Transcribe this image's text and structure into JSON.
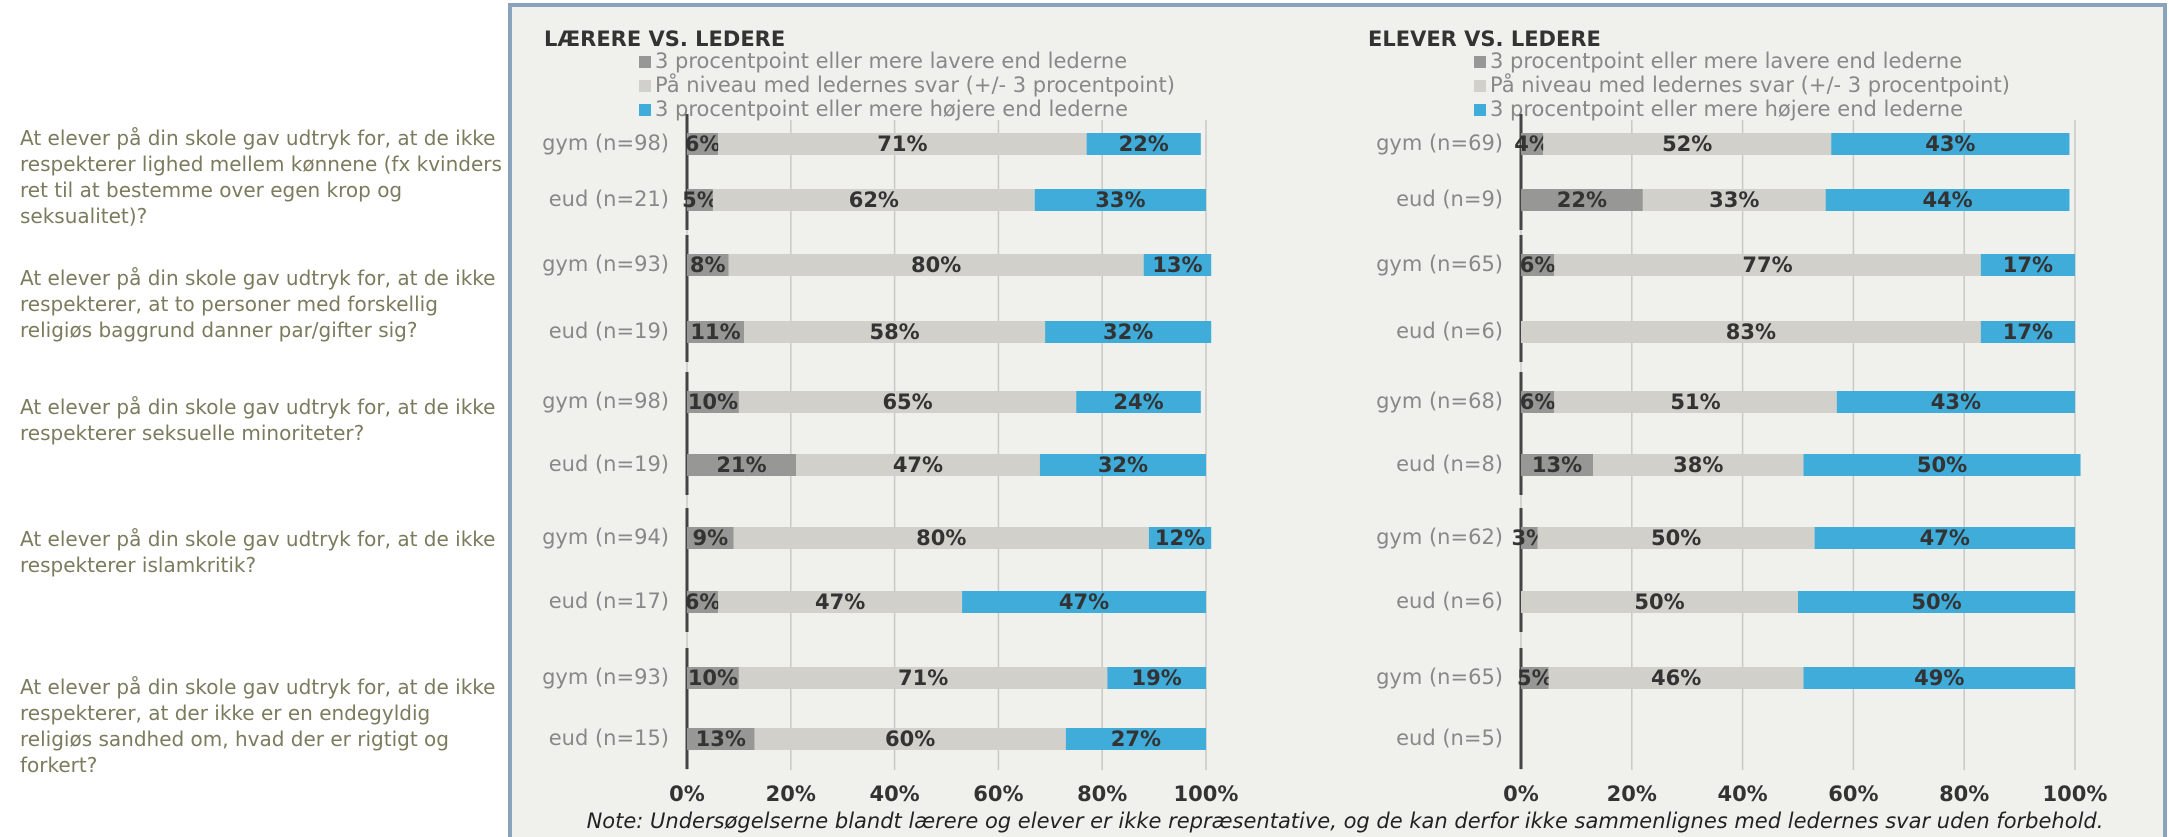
{
  "questions": [
    "At elever på din skole gav udtryk for, at de ikke respekterer lighed mellem kønnene (fx kvinders ret til at bestemme over egen krop og seksualitet)?",
    "At elever på din skole gav udtryk for, at de ikke respekterer, at to personer med forskellig religiøs baggrund danner par/gifter sig?",
    "At elever på din skole gav udtryk for, at de ikke respekterer seksuelle minoriteter?",
    "At elever på din skole gav udtryk for, at de ikke respekterer islamkritik?",
    "At elever på din skole gav udtryk for, at de ikke respekterer, at der ikke er en endegyldig religiøs sandhed om, hvad der er rigtigt og forkert?"
  ],
  "note": "Note: Undersøgelserne blandt lærere og elever er ikke repræsentative, og de kan derfor ikke sammenlignes med ledernes svar uden forbehold.",
  "chart_data": [
    {
      "type": "bar",
      "stacked": true,
      "orientation": "horizontal",
      "title": "LÆRERE VS. LEDERE",
      "categories": [
        "gym (n=98)",
        "eud (n=21)",
        "gym (n=93)",
        "eud (n=19)",
        "gym (n=98)",
        "eud (n=19)",
        "gym (n=94)",
        "eud (n=17)",
        "gym (n=93)",
        "eud (n=15)"
      ],
      "series": [
        {
          "name": "3 procentpoint eller mere lavere end lederne",
          "color": "#979795",
          "values": [
            6,
            5,
            8,
            11,
            10,
            21,
            9,
            6,
            10,
            13
          ],
          "value_labels": [
            "6%",
            "5%",
            "8%",
            "11%",
            "10%",
            "21%",
            "9%",
            "6%",
            "10%",
            "13%"
          ]
        },
        {
          "name": "På niveau med ledernes svar (+/- 3 procentpoint)",
          "color": "#d1d0ca",
          "values": [
            71,
            62,
            80,
            58,
            65,
            47,
            80,
            47,
            71,
            60
          ],
          "value_labels": [
            "71%",
            "62%",
            "80%",
            "58%",
            "65%",
            "47%",
            "80%",
            "47%",
            "71%",
            "60%"
          ]
        },
        {
          "name": "3 procentpoint eller mere højere end lederne",
          "color": "#3facda",
          "values": [
            22,
            33,
            13,
            32,
            24,
            32,
            12,
            47,
            19,
            27
          ],
          "value_labels": [
            "22%",
            "33%",
            "13%",
            "32%",
            "24%",
            "32%",
            "12%",
            "47%",
            "19%",
            "27%"
          ]
        }
      ],
      "xlim": [
        0,
        100
      ],
      "xticks": [
        {
          "value": 0,
          "label": "0%"
        },
        {
          "value": 20,
          "label": "20%"
        },
        {
          "value": 40,
          "label": "40%"
        },
        {
          "value": 60,
          "label": "60%"
        },
        {
          "value": 80,
          "label": "80%"
        },
        {
          "value": 100,
          "label": "100%"
        }
      ],
      "grid": true
    },
    {
      "type": "bar",
      "stacked": true,
      "orientation": "horizontal",
      "title": "ELEVER VS. LEDERE",
      "categories": [
        "gym (n=69)",
        "eud (n=9)",
        "gym (n=65)",
        "eud (n=6)",
        "gym (n=68)",
        "eud (n=8)",
        "gym (n=62)",
        "eud (n=6)",
        "gym (n=65)",
        "eud (n=5)"
      ],
      "series": [
        {
          "name": "3 procentpoint eller mere lavere end lederne",
          "color": "#979795",
          "values": [
            4,
            22,
            6,
            null,
            6,
            13,
            3,
            null,
            5,
            null
          ],
          "value_labels": [
            "4%",
            "22%",
            "6%",
            null,
            "6%",
            "13%",
            "3%",
            null,
            "5%",
            null
          ]
        },
        {
          "name": "På niveau med ledernes svar (+/- 3 procentpoint)",
          "color": "#d1d0ca",
          "values": [
            52,
            33,
            77,
            83,
            51,
            38,
            50,
            50,
            46,
            null
          ],
          "value_labels": [
            "52%",
            "33%",
            "77%",
            "83%",
            "51%",
            "38%",
            "50%",
            "50%",
            "46%",
            null
          ]
        },
        {
          "name": "3 procentpoint eller mere højere end lederne",
          "color": "#3facda",
          "values": [
            43,
            44,
            17,
            17,
            43,
            50,
            47,
            50,
            49,
            null
          ],
          "value_labels": [
            "43%",
            "44%",
            "17%",
            "17%",
            "43%",
            "50%",
            "47%",
            "50%",
            "49%",
            null
          ]
        }
      ],
      "xlim": [
        0,
        100
      ],
      "xticks": [
        {
          "value": 0,
          "label": "0%"
        },
        {
          "value": 20,
          "label": "20%"
        },
        {
          "value": 40,
          "label": "40%"
        },
        {
          "value": 60,
          "label": "60%"
        },
        {
          "value": 80,
          "label": "80%"
        },
        {
          "value": 100,
          "label": "100%"
        }
      ],
      "grid": true
    }
  ]
}
